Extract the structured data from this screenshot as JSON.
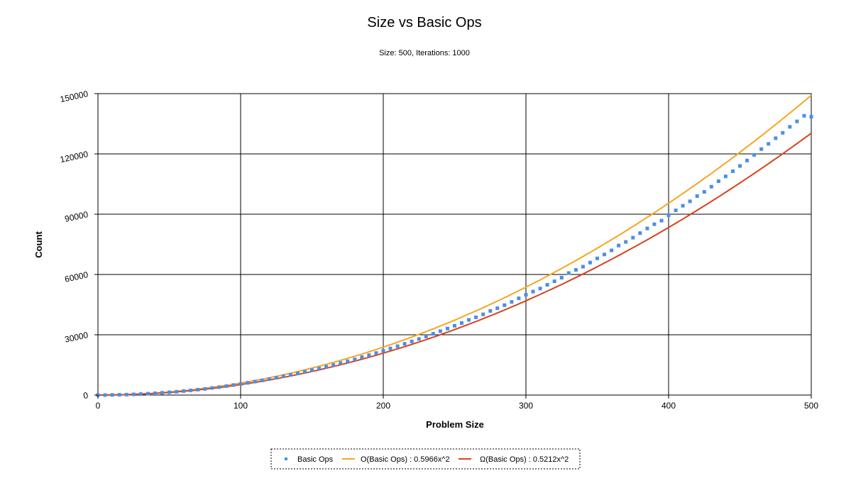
{
  "chart_data": {
    "type": "scatter",
    "title": "Size vs Basic Ops",
    "subtitle": "Size: 500, Iterations: 1000",
    "xlabel": "Problem Size",
    "ylabel": "Count",
    "xlim": [
      0,
      500
    ],
    "ylim": [
      0,
      150000
    ],
    "x_ticks": [
      "0",
      "100",
      "200",
      "300",
      "400",
      "500"
    ],
    "y_ticks": [
      "0",
      "30000",
      "60000",
      "90000",
      "120000",
      "150000"
    ],
    "grid": true,
    "legend_position": "bottom",
    "series": [
      {
        "name": "Basic Ops",
        "kind": "scatter",
        "color": "#4a8fe7",
        "x": [
          0,
          5,
          10,
          15,
          20,
          25,
          30,
          35,
          40,
          45,
          50,
          55,
          60,
          65,
          70,
          75,
          80,
          85,
          90,
          95,
          100,
          105,
          110,
          115,
          120,
          125,
          130,
          135,
          140,
          145,
          150,
          155,
          160,
          165,
          170,
          175,
          180,
          185,
          190,
          195,
          200,
          205,
          210,
          215,
          220,
          225,
          230,
          235,
          240,
          245,
          250,
          255,
          260,
          265,
          270,
          275,
          280,
          285,
          290,
          295,
          300,
          305,
          310,
          315,
          320,
          325,
          330,
          335,
          340,
          345,
          350,
          355,
          360,
          365,
          370,
          375,
          380,
          385,
          390,
          395,
          400,
          405,
          410,
          415,
          420,
          425,
          430,
          435,
          440,
          445,
          450,
          455,
          460,
          465,
          470,
          475,
          480,
          485,
          490,
          495,
          500
        ],
        "y": [
          0,
          14,
          55,
          124,
          220,
          343,
          495,
          673,
          880,
          1112,
          1374,
          1662,
          1978,
          2319,
          2690,
          3086,
          3516,
          3968,
          4451,
          4970,
          5500,
          6060,
          6660,
          7282,
          7930,
          8610,
          9310,
          10040,
          10760,
          11560,
          12380,
          13200,
          14090,
          14960,
          15910,
          16840,
          17800,
          18880,
          19870,
          20940,
          22040,
          23190,
          24300,
          25500,
          26700,
          27920,
          29150,
          30510,
          31810,
          33090,
          34500,
          35850,
          37400,
          38670,
          40150,
          41850,
          43200,
          44720,
          46340,
          48150,
          49900,
          51480,
          53000,
          54840,
          56600,
          58400,
          60700,
          62280,
          63900,
          65930,
          68000,
          69950,
          72000,
          74400,
          76200,
          78300,
          80580,
          82900,
          85000,
          86780,
          89500,
          91900,
          94200,
          96400,
          99000,
          101100,
          103700,
          106400,
          108800,
          111400,
          114000,
          116700,
          119500,
          122400,
          125000,
          127800,
          130500,
          133500,
          136200,
          139000,
          138500
        ]
      },
      {
        "name": "O(Basic Ops) : 0.5966x^2",
        "kind": "line",
        "color": "#f5a623",
        "coef": 0.5966
      },
      {
        "name": "Ω(Basic Ops) : 0.5212x^2",
        "kind": "line",
        "color": "#d9411e",
        "coef": 0.5212
      }
    ]
  }
}
